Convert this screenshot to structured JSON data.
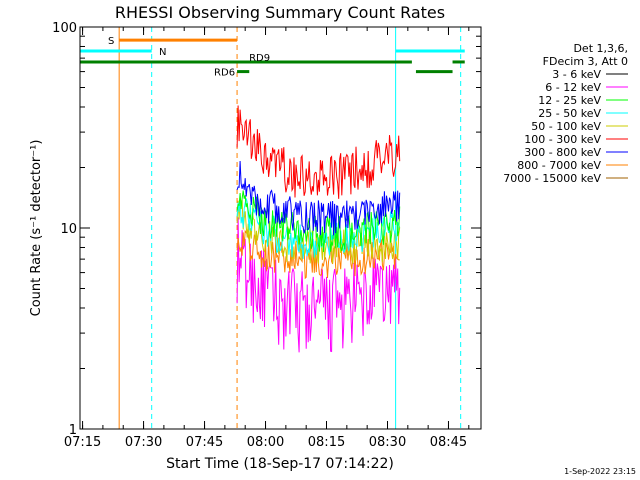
{
  "chart_data": {
    "type": "line",
    "title": "RHESSI Observing Summary Count Rates",
    "xlabel": "Start Time (18-Sep-17 07:14:22)",
    "ylabel": "Count Rate (s⁻¹ detector⁻¹)",
    "yscale": "log",
    "ylim": [
      1,
      100
    ],
    "xlim": [
      "07:14:22",
      "08:53:00"
    ],
    "x_ticks": [
      "07:15",
      "07:30",
      "07:45",
      "08:00",
      "08:15",
      "08:30",
      "08:45"
    ],
    "y_ticks": [
      "1",
      "10",
      "100"
    ],
    "grid": false,
    "legend_position": "right",
    "legend_header": [
      "Det 1,3,6,",
      "FDecim 3, Att 0"
    ],
    "series": [
      {
        "name": "3 - 6 keV",
        "color": "#000000",
        "points": []
      },
      {
        "name": "6 - 12 keV",
        "color": "#ff00ff",
        "x": [
          "07:53",
          "07:55",
          "08:00",
          "08:05",
          "08:10",
          "08:15",
          "08:20",
          "08:25",
          "08:30",
          "08:33"
        ],
        "y": [
          7.0,
          6.0,
          4.8,
          4.0,
          3.8,
          3.9,
          4.0,
          4.3,
          4.8,
          5.0
        ]
      },
      {
        "name": "12 - 25 keV",
        "color": "#00ff00",
        "x": [
          "07:53",
          "07:55",
          "08:00",
          "08:05",
          "08:10",
          "08:15",
          "08:20",
          "08:25",
          "08:30",
          "08:33"
        ],
        "y": [
          15.0,
          12.5,
          11.0,
          10.0,
          9.5,
          9.3,
          9.4,
          9.8,
          10.2,
          10.5
        ]
      },
      {
        "name": "25 - 50 keV",
        "color": "#00ffff",
        "x": [
          "07:53",
          "07:55",
          "08:00",
          "08:05",
          "08:10",
          "08:15",
          "08:20",
          "08:25",
          "08:30",
          "08:33"
        ],
        "y": [
          14.0,
          11.5,
          9.8,
          8.8,
          8.4,
          8.6,
          8.9,
          9.5,
          10.0,
          10.3
        ]
      },
      {
        "name": "50 - 100 keV",
        "color": "#cccc00",
        "x": [
          "07:53",
          "07:55",
          "08:00",
          "08:05",
          "08:10",
          "08:15",
          "08:20",
          "08:25",
          "08:30",
          "08:33"
        ],
        "y": [
          13.0,
          10.5,
          9.0,
          8.3,
          8.0,
          7.9,
          8.0,
          8.2,
          8.4,
          8.5
        ]
      },
      {
        "name": "100 - 300 keV",
        "color": "#ff0000",
        "x": [
          "07:53",
          "07:55",
          "08:00",
          "08:05",
          "08:10",
          "08:15",
          "08:20",
          "08:25",
          "08:30",
          "08:33"
        ],
        "y": [
          33.0,
          28.0,
          22.0,
          19.0,
          17.5,
          17.0,
          18.5,
          20.5,
          22.5,
          23.0
        ]
      },
      {
        "name": "300 - 800 keV",
        "color": "#0000ff",
        "x": [
          "07:53",
          "07:55",
          "08:00",
          "08:05",
          "08:10",
          "08:15",
          "08:20",
          "08:25",
          "08:30",
          "08:33"
        ],
        "y": [
          19.0,
          15.5,
          13.0,
          12.0,
          11.5,
          11.2,
          11.5,
          12.0,
          12.8,
          13.0
        ]
      },
      {
        "name": "800 - 7000 keV",
        "color": "#ff8000",
        "x": [
          "07:53",
          "07:55",
          "08:00",
          "08:05",
          "08:10",
          "08:15",
          "08:20",
          "08:25",
          "08:30",
          "08:33"
        ],
        "y": [
          9.5,
          8.5,
          7.6,
          7.1,
          6.9,
          6.9,
          7.0,
          7.2,
          7.4,
          7.5
        ]
      },
      {
        "name": "7000 - 15000 keV",
        "color": "#a06000",
        "points": []
      }
    ],
    "flag_bars": [
      {
        "label": "S",
        "color": "#ff8000",
        "x": [
          "07:24",
          "07:53"
        ],
        "y": 86
      },
      {
        "label": "N",
        "color": "#00ffff",
        "x": [
          "07:14:22",
          "07:32"
        ],
        "y": 76
      },
      {
        "label": "",
        "color": "#00ffff",
        "x": [
          "08:32",
          "08:49"
        ],
        "y": 76
      },
      {
        "label": "RD9",
        "color": "#008000",
        "x": [
          "07:14:22",
          "08:36"
        ],
        "y": 67
      },
      {
        "label": "RD6",
        "color": "#008000",
        "x": [
          "07:53",
          "07:56"
        ],
        "y": 60
      },
      {
        "label": "",
        "color": "#008000",
        "x": [
          "08:37",
          "08:46"
        ],
        "y": 60
      },
      {
        "label": "",
        "color": "#008000",
        "x": [
          "08:46",
          "08:49"
        ],
        "y": 67
      }
    ],
    "vertical_lines": [
      {
        "x": "07:24",
        "color": "#ff8000",
        "style": "solid"
      },
      {
        "x": "07:32",
        "color": "#00ffff",
        "style": "dashed"
      },
      {
        "x": "07:53",
        "color": "#ff8000",
        "style": "dashed"
      },
      {
        "x": "07:14:22",
        "color": "#00ffff",
        "style": "solid"
      },
      {
        "x": "08:32",
        "color": "#00ffff",
        "style": "solid"
      },
      {
        "x": "08:48",
        "color": "#00ffff",
        "style": "dashed"
      }
    ],
    "footer_date": "1-Sep-2022 23:15"
  }
}
